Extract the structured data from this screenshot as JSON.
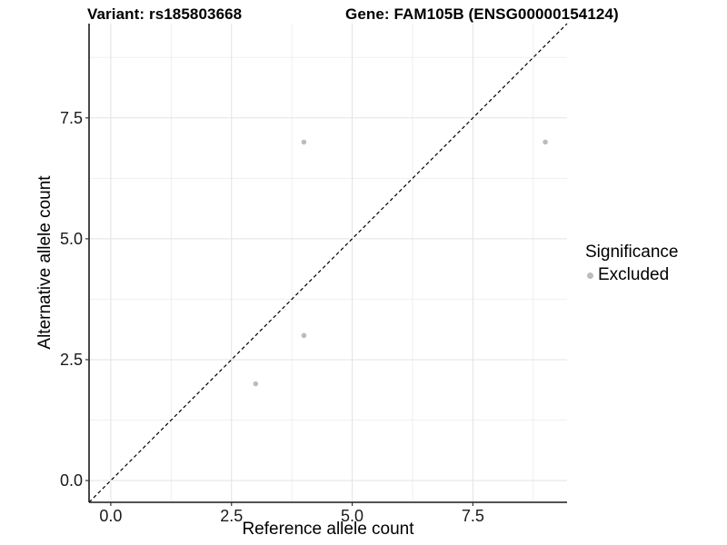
{
  "chart_data": {
    "type": "scatter",
    "titles": {
      "left": "Variant: rs185803668",
      "right": "Gene: FAM105B (ENSG00000154124)"
    },
    "xlabel": "Reference allele count",
    "ylabel": "Alternative allele count",
    "xlim": [
      -0.45,
      9.45
    ],
    "ylim": [
      -0.45,
      9.45
    ],
    "xticks": [
      0,
      2.5,
      5,
      7.5
    ],
    "yticks": [
      0,
      2.5,
      5,
      7.5
    ],
    "minor_ticks_x": [
      1.25,
      3.75,
      6.25,
      8.75
    ],
    "minor_ticks_y": [
      1.25,
      3.75,
      6.25,
      8.75
    ],
    "grid": true,
    "legend_position": "right",
    "series": [
      {
        "name": "Excluded",
        "color": "#bcbcbc",
        "points": [
          [
            3,
            2
          ],
          [
            4,
            3
          ],
          [
            4,
            7
          ],
          [
            9,
            7
          ]
        ]
      }
    ],
    "identity_line": {
      "style": "dashed",
      "slope": 1,
      "intercept": 0,
      "color": "#000000"
    },
    "legend": {
      "title": "Significance",
      "entries": [
        {
          "label": "Excluded",
          "color": "#bcbcbc"
        }
      ]
    },
    "colors": {
      "background": "#ffffff",
      "axis_line": "#1a1a1a",
      "tick_mark": "#333333",
      "grid_major": "#e3e3e3",
      "grid_minor": "#efefef",
      "text": "#1a1a1a"
    }
  }
}
